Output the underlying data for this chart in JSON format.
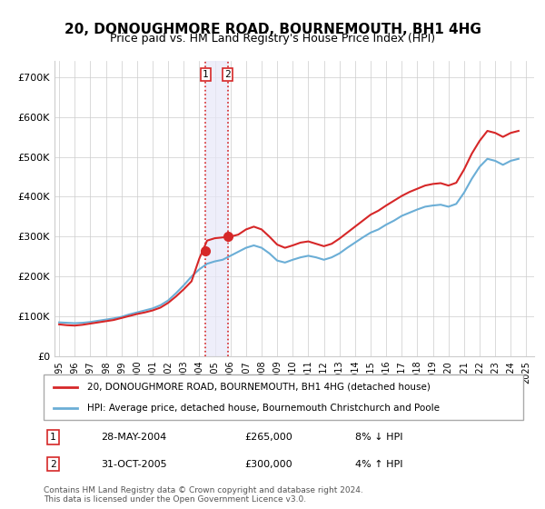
{
  "title": "20, DONOUGHMORE ROAD, BOURNEMOUTH, BH1 4HG",
  "subtitle": "Price paid vs. HM Land Registry's House Price Index (HPI)",
  "title_fontsize": 11,
  "subtitle_fontsize": 9.5,
  "ylabel_ticks": [
    "£0",
    "£100K",
    "£200K",
    "£300K",
    "£400K",
    "£500K",
    "£600K",
    "£700K"
  ],
  "ytick_values": [
    0,
    100000,
    200000,
    300000,
    400000,
    500000,
    600000,
    700000
  ],
  "ylim": [
    0,
    740000
  ],
  "xlim_start": 1995.0,
  "xlim_end": 2025.5,
  "hpi_line_color": "#6baed6",
  "price_line_color": "#d62728",
  "marker_color": "#d62728",
  "sale1_x": 2004.4,
  "sale1_y": 265000,
  "sale1_label": "1",
  "sale2_x": 2005.83,
  "sale2_y": 300000,
  "sale2_label": "2",
  "vline_color": "#d62728",
  "vline_style": ":",
  "shade_color": "#f0f0ff",
  "legend_line1": "20, DONOUGHMORE ROAD, BOURNEMOUTH, BH1 4HG (detached house)",
  "legend_line2": "HPI: Average price, detached house, Bournemouth Christchurch and Poole",
  "transaction1_num": "1",
  "transaction1_date": "28-MAY-2004",
  "transaction1_price": "£265,000",
  "transaction1_hpi": "8% ↓ HPI",
  "transaction2_num": "2",
  "transaction2_date": "31-OCT-2005",
  "transaction2_price": "£300,000",
  "transaction2_hpi": "4% ↑ HPI",
  "footnote": "Contains HM Land Registry data © Crown copyright and database right 2024.\nThis data is licensed under the Open Government Licence v3.0.",
  "hpi_data_x": [
    1995.0,
    1995.5,
    1996.0,
    1996.5,
    1997.0,
    1997.5,
    1998.0,
    1998.5,
    1999.0,
    1999.5,
    2000.0,
    2000.5,
    2001.0,
    2001.5,
    2002.0,
    2002.5,
    2003.0,
    2003.5,
    2004.0,
    2004.5,
    2005.0,
    2005.5,
    2006.0,
    2006.5,
    2007.0,
    2007.5,
    2008.0,
    2008.5,
    2009.0,
    2009.5,
    2010.0,
    2010.5,
    2011.0,
    2011.5,
    2012.0,
    2012.5,
    2013.0,
    2013.5,
    2014.0,
    2014.5,
    2015.0,
    2015.5,
    2016.0,
    2016.5,
    2017.0,
    2017.5,
    2018.0,
    2018.5,
    2019.0,
    2019.5,
    2020.0,
    2020.5,
    2021.0,
    2021.5,
    2022.0,
    2022.5,
    2023.0,
    2023.5,
    2024.0,
    2024.5
  ],
  "hpi_data_y": [
    85000,
    84000,
    83000,
    84000,
    86000,
    89000,
    92000,
    95000,
    99000,
    105000,
    110000,
    115000,
    120000,
    128000,
    140000,
    158000,
    178000,
    200000,
    218000,
    232000,
    238000,
    242000,
    252000,
    262000,
    272000,
    278000,
    272000,
    258000,
    240000,
    235000,
    242000,
    248000,
    252000,
    248000,
    242000,
    248000,
    258000,
    272000,
    285000,
    298000,
    310000,
    318000,
    330000,
    340000,
    352000,
    360000,
    368000,
    375000,
    378000,
    380000,
    375000,
    382000,
    410000,
    445000,
    475000,
    495000,
    490000,
    480000,
    490000,
    495000
  ],
  "price_data_x": [
    1995.0,
    1995.5,
    1996.0,
    1996.5,
    1997.0,
    1997.5,
    1998.0,
    1998.5,
    1999.0,
    1999.5,
    2000.0,
    2000.5,
    2001.0,
    2001.5,
    2002.0,
    2002.5,
    2003.0,
    2003.5,
    2004.0,
    2004.5,
    2005.0,
    2005.5,
    2006.0,
    2006.5,
    2007.0,
    2007.5,
    2008.0,
    2008.5,
    2009.0,
    2009.5,
    2010.0,
    2010.5,
    2011.0,
    2011.5,
    2012.0,
    2012.5,
    2013.0,
    2013.5,
    2014.0,
    2014.5,
    2015.0,
    2015.5,
    2016.0,
    2016.5,
    2017.0,
    2017.5,
    2018.0,
    2018.5,
    2019.0,
    2019.5,
    2020.0,
    2020.5,
    2021.0,
    2021.5,
    2022.0,
    2022.5,
    2023.0,
    2023.5,
    2024.0,
    2024.5
  ],
  "price_data_y": [
    80000,
    78000,
    77000,
    79000,
    82000,
    85000,
    88000,
    91000,
    96000,
    101000,
    106000,
    110000,
    115000,
    122000,
    134000,
    150000,
    168000,
    188000,
    245000,
    290000,
    296000,
    298000,
    300000,
    305000,
    318000,
    325000,
    318000,
    300000,
    280000,
    272000,
    278000,
    285000,
    288000,
    282000,
    276000,
    282000,
    295000,
    310000,
    325000,
    340000,
    355000,
    365000,
    378000,
    390000,
    402000,
    412000,
    420000,
    428000,
    432000,
    434000,
    428000,
    435000,
    468000,
    508000,
    540000,
    565000,
    560000,
    550000,
    560000,
    565000
  ]
}
